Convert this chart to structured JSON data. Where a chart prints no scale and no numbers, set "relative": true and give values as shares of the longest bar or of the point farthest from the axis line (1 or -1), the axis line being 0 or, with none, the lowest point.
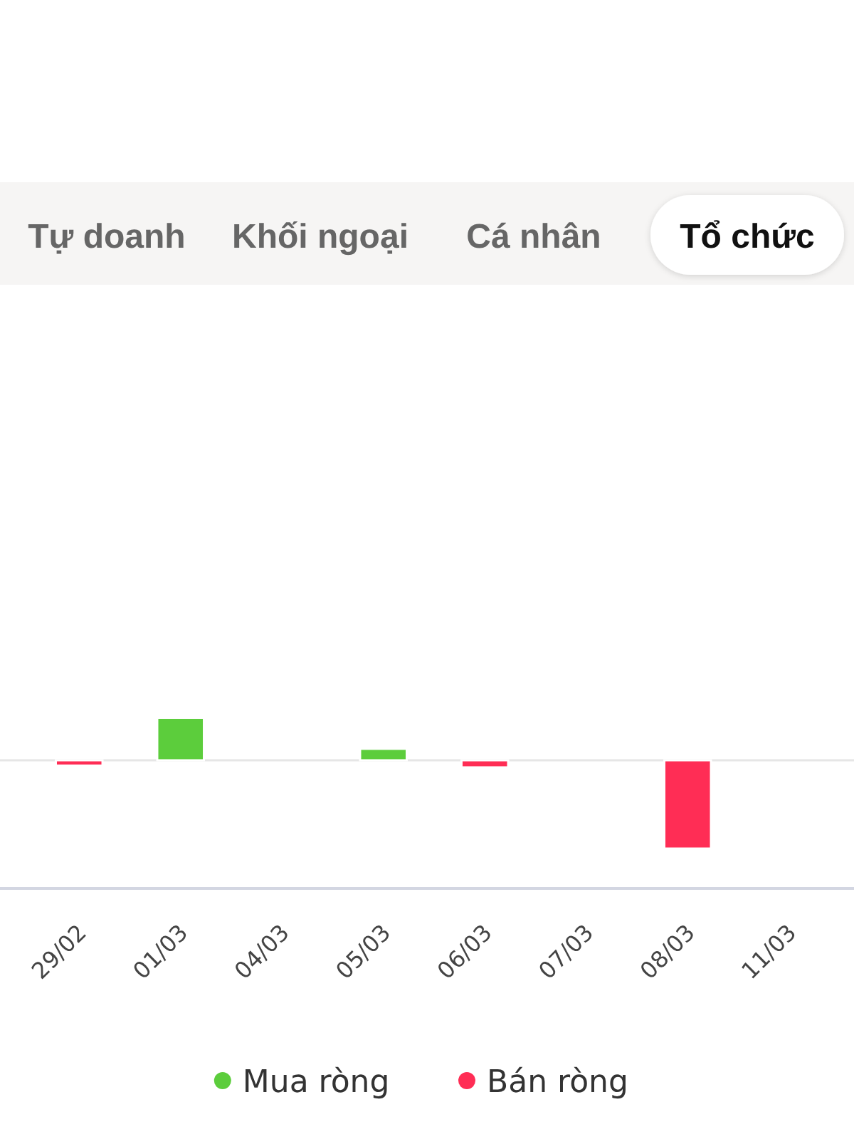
{
  "chart_data": {
    "type": "bar",
    "annotations": [
      "Tự doanh",
      "Khối ngoại",
      "Cá nhân",
      "Tổ chức"
    ],
    "categories": [
      "29/02",
      "01/03",
      "04/03",
      "05/03",
      "06/03",
      "07/03",
      "08/03",
      "11/03"
    ],
    "series": [
      {
        "name": "Mua ròng",
        "color": "#5ccd3c",
        "values": [
          null,
          0.48,
          null,
          0.13,
          null,
          null,
          null,
          null
        ]
      },
      {
        "name": "Bán ròng",
        "color": "#ff2d55",
        "values": [
          -0.06,
          null,
          null,
          null,
          -0.08,
          null,
          -1,
          null
        ]
      }
    ],
    "relative": true,
    "stacked": true,
    "legend": "bottom"
  }
}
